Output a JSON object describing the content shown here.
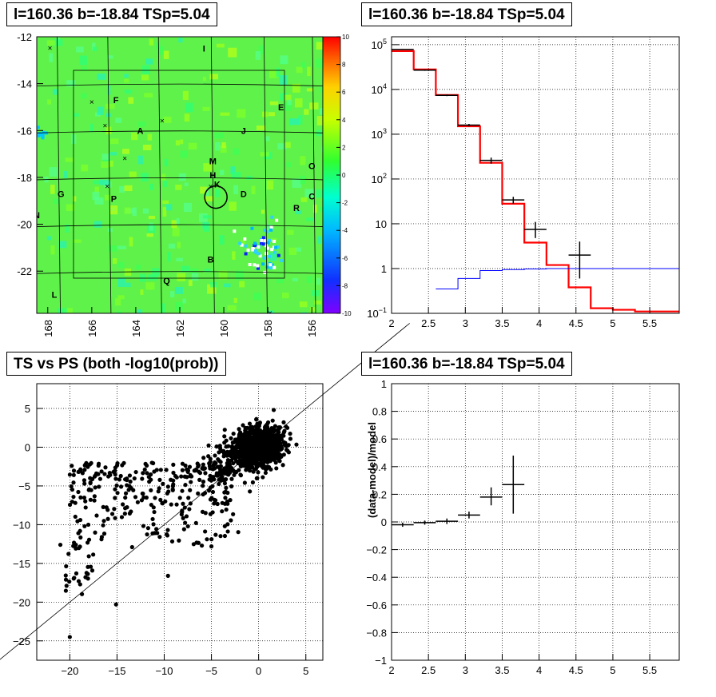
{
  "panels": {
    "skymap": {
      "title": "l=160.36 b=-18.84 TSp=5.04",
      "chart_data": {
        "type": "heatmap",
        "x_ticks": [
          "168",
          "166",
          "164",
          "162",
          "160",
          "158",
          "156"
        ],
        "x_tick_values": [
          168,
          166,
          164,
          162,
          160,
          158,
          156
        ],
        "xlim": [
          168.5,
          155.5
        ],
        "y_ticks": [
          "-12",
          "-14",
          "-16",
          "-18",
          "-20",
          "-22"
        ],
        "y_tick_values": [
          -12,
          -14,
          -16,
          -18,
          -20,
          -22
        ],
        "ylim": [
          -23.8,
          -12
        ],
        "colorbar_ticks": [
          "10",
          "8",
          "6",
          "4",
          "2",
          "0",
          "-2",
          "-4",
          "-6",
          "-8",
          "-10"
        ],
        "colorbar_range": [
          -10,
          10
        ],
        "source_labels": [
          {
            "t": "I",
            "x": 160.9,
            "y": -12.5
          },
          {
            "t": "F",
            "x": 164.9,
            "y": -14.7
          },
          {
            "t": "E",
            "x": 157.4,
            "y": -15.0
          },
          {
            "t": "A",
            "x": 163.8,
            "y": -16.0
          },
          {
            "t": "J",
            "x": 159.1,
            "y": -16.0
          },
          {
            "t": "M",
            "x": 160.5,
            "y": -17.3
          },
          {
            "t": "H",
            "x": 160.5,
            "y": -17.9
          },
          {
            "t": "K",
            "x": 160.3,
            "y": -18.3
          },
          {
            "t": "D",
            "x": 159.1,
            "y": -18.7
          },
          {
            "t": "O",
            "x": 156.0,
            "y": -17.5
          },
          {
            "t": "C",
            "x": 156.0,
            "y": -18.8
          },
          {
            "t": "G",
            "x": 167.4,
            "y": -18.7
          },
          {
            "t": "P",
            "x": 165.0,
            "y": -18.9
          },
          {
            "t": "R",
            "x": 156.7,
            "y": -19.3
          },
          {
            "t": "N",
            "x": 168.5,
            "y": -19.6
          },
          {
            "t": "B",
            "x": 160.6,
            "y": -21.5
          },
          {
            "t": "Q",
            "x": 162.6,
            "y": -22.4
          },
          {
            "t": "L",
            "x": 167.7,
            "y": -23.0
          }
        ]
      }
    },
    "spectrum": {
      "title": "l=160.36 b=-18.84 TSp=5.04",
      "chart_data": {
        "type": "line",
        "x_ticks": [
          "2",
          "2.5",
          "3",
          "3.5",
          "4",
          "4.5",
          "5",
          "5.5"
        ],
        "x_tick_values": [
          2,
          2.5,
          3,
          3.5,
          4,
          4.5,
          5,
          5.5
        ],
        "xlim": [
          2,
          5.9
        ],
        "ylog": true,
        "ylim": [
          0.1,
          150000
        ],
        "y_ticks": [
          "10^1",
          "10^2",
          "10^3",
          "10^4",
          "10^5",
          "1",
          "10",
          "10⁻¹"
        ],
        "y_tick_labels": [
          {
            "base": "10",
            "exp": "5",
            "v": 100000
          },
          {
            "base": "10",
            "exp": "4",
            "v": 10000
          },
          {
            "base": "10",
            "exp": "3",
            "v": 1000
          },
          {
            "base": "10",
            "exp": "2",
            "v": 100
          },
          {
            "base": "",
            "exp": "",
            "label": "10",
            "v": 10
          },
          {
            "base": "",
            "exp": "",
            "label": "1",
            "v": 1
          },
          {
            "base": "10",
            "exp": "−1",
            "v": 0.1
          }
        ],
        "series": [
          {
            "color": "#ff0000",
            "edges": [
              2,
              2.3,
              2.6,
              2.9,
              3.2,
              3.5,
              3.8,
              4.1,
              4.4,
              4.7,
              5.0,
              5.3,
              5.6,
              5.9
            ],
            "values": [
              72000,
              28000,
              7500,
              1500,
              230,
              28,
              3.8,
              1.2,
              0.38,
              0.13,
              0.12,
              0.11,
              0.11
            ]
          },
          {
            "color": "#0000ff",
            "edges": [
              2.6,
              2.9,
              3.2,
              3.5,
              3.8,
              4.1,
              4.4,
              4.7,
              5.0,
              5.3,
              5.6,
              5.9
            ],
            "values": [
              0.35,
              0.6,
              0.9,
              0.95,
              0.98,
              1.0,
              1.0,
              1.0,
              1.0,
              1.0,
              1.0
            ]
          }
        ],
        "points": [
          {
            "x": 2.15,
            "y": 78000,
            "xerr": 0.15,
            "ylo": 76000,
            "yhi": 80000
          },
          {
            "x": 2.45,
            "y": 27000,
            "xerr": 0.15,
            "ylo": 26000,
            "yhi": 28000
          },
          {
            "x": 2.75,
            "y": 7400,
            "xerr": 0.15,
            "ylo": 7100,
            "yhi": 7700
          },
          {
            "x": 3.05,
            "y": 1600,
            "xerr": 0.15,
            "ylo": 1500,
            "yhi": 1700
          },
          {
            "x": 3.35,
            "y": 260,
            "xerr": 0.15,
            "ylo": 220,
            "yhi": 300
          },
          {
            "x": 3.65,
            "y": 34,
            "xerr": 0.15,
            "ylo": 28,
            "yhi": 40
          },
          {
            "x": 3.95,
            "y": 7.5,
            "xerr": 0.15,
            "ylo": 4.8,
            "yhi": 11
          },
          {
            "x": 4.55,
            "y": 2.0,
            "xerr": 0.15,
            "ylo": 0.6,
            "yhi": 4.0
          }
        ]
      }
    },
    "scatter": {
      "title": "TS vs PS (both -log10(prob))",
      "chart_data": {
        "type": "scatter",
        "x_ticks": [
          "−20",
          "−15",
          "−10",
          "−5",
          "0",
          "5"
        ],
        "x_tick_values": [
          -20,
          -15,
          -10,
          -5,
          0,
          5
        ],
        "xlim": [
          -23.5,
          6.8
        ],
        "y_ticks": [
          "5",
          "0",
          "−5",
          "−10",
          "−15",
          "−20",
          "−25"
        ],
        "y_tick_values": [
          5,
          0,
          -5,
          -10,
          -15,
          -20,
          -25
        ],
        "ylim": [
          -27.5,
          8.2
        ],
        "diagonal": true,
        "seed": 7
      }
    },
    "residual": {
      "title": "l=160.36 b=-18.84 TSp=5.04",
      "chart_data": {
        "type": "scatter",
        "ylabel": "(data-model)/model",
        "x_ticks": [
          "2",
          "2.5",
          "3",
          "3.5",
          "4",
          "4.5",
          "5",
          "5.5"
        ],
        "x_tick_values": [
          2,
          2.5,
          3,
          3.5,
          4,
          4.5,
          5,
          5.5
        ],
        "xlim": [
          2,
          5.9
        ],
        "y_ticks": [
          "1",
          "0.8",
          "0.6",
          "0.4",
          "0.2",
          "0",
          "−0.2",
          "−0.4",
          "−0.6",
          "−0.8",
          "−1"
        ],
        "y_tick_values": [
          1,
          0.8,
          0.6,
          0.4,
          0.2,
          0,
          -0.2,
          -0.4,
          -0.6,
          -0.8,
          -1
        ],
        "ylim": [
          -1,
          1
        ],
        "points": [
          {
            "x": 2.15,
            "y": -0.02,
            "xerr": 0.15,
            "ylo": -0.035,
            "yhi": -0.005
          },
          {
            "x": 2.45,
            "y": -0.005,
            "xerr": 0.15,
            "ylo": -0.02,
            "yhi": 0.01
          },
          {
            "x": 2.75,
            "y": 0.005,
            "xerr": 0.15,
            "ylo": -0.015,
            "yhi": 0.025
          },
          {
            "x": 3.05,
            "y": 0.05,
            "xerr": 0.15,
            "ylo": 0.025,
            "yhi": 0.075
          },
          {
            "x": 3.35,
            "y": 0.18,
            "xerr": 0.15,
            "ylo": 0.12,
            "yhi": 0.25
          },
          {
            "x": 3.65,
            "y": 0.27,
            "xerr": 0.15,
            "ylo": 0.06,
            "yhi": 0.48
          }
        ]
      }
    }
  }
}
